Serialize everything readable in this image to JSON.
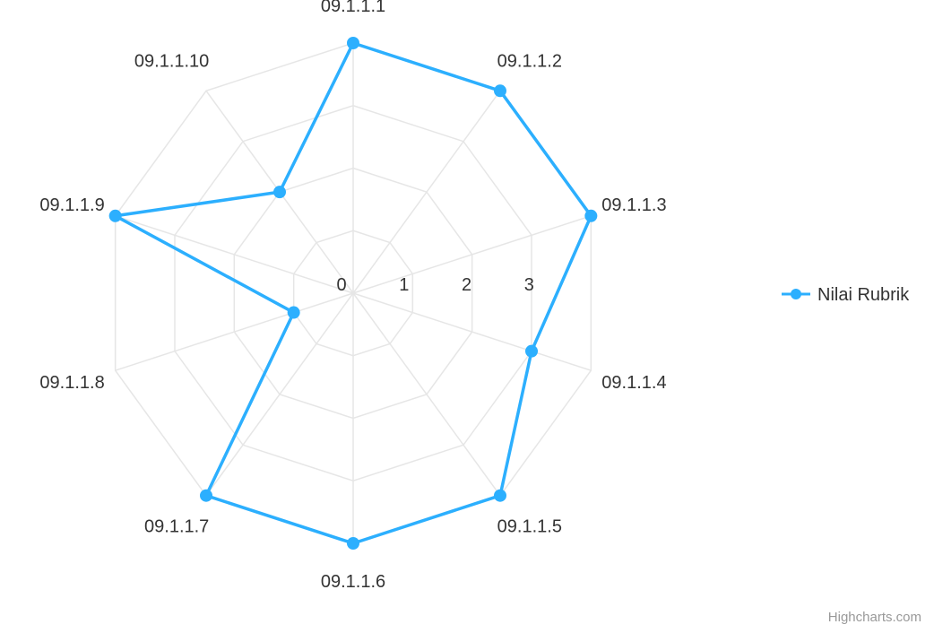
{
  "chart_data": {
    "type": "radar",
    "categories": [
      "09.1.1.1",
      "09.1.1.2",
      "09.1.1.3",
      "09.1.1.4",
      "09.1.1.5",
      "09.1.1.6",
      "09.1.1.7",
      "09.1.1.8",
      "09.1.1.9",
      "09.1.1.10"
    ],
    "series": [
      {
        "name": "Nilai Rubrik",
        "values": [
          4,
          4,
          4,
          3,
          4,
          4,
          4,
          1,
          4,
          2
        ],
        "color": "#2caffe"
      }
    ],
    "radial_ticks": [
      "0",
      "1",
      "2",
      "3"
    ],
    "ylim": [
      0,
      4
    ],
    "grid": "polygon",
    "grid_color": "#e6e6e6",
    "legend_position": "right"
  },
  "credits": "Highcharts.com"
}
